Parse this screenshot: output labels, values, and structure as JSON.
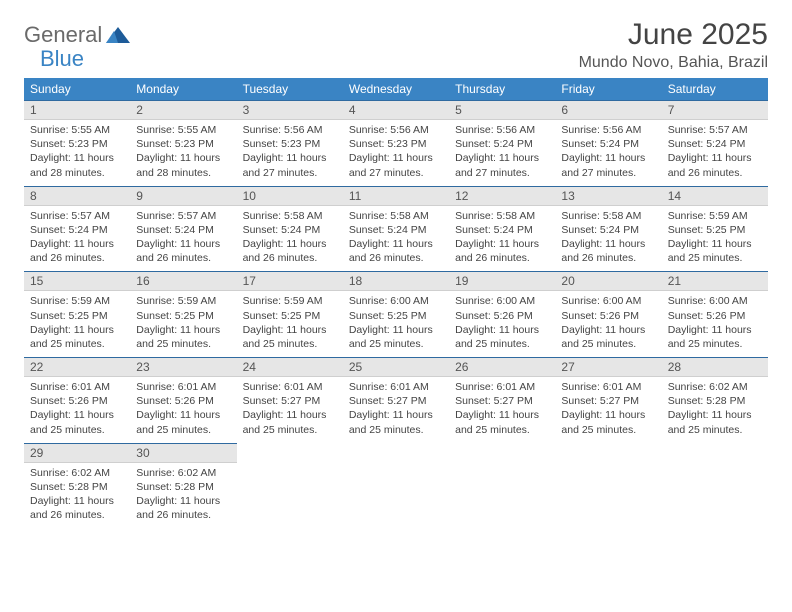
{
  "brand": {
    "text_general": "General",
    "text_blue": "Blue",
    "icon_color": "#1d5b99"
  },
  "title": "June 2025",
  "location": "Mundo Novo, Bahia, Brazil",
  "colors": {
    "header_bg": "#3a84c4",
    "header_text": "#ffffff",
    "daynum_bg": "#e6e6e6",
    "daynum_border_top": "#2f6aa0",
    "body_text": "#444444"
  },
  "day_headers": [
    "Sunday",
    "Monday",
    "Tuesday",
    "Wednesday",
    "Thursday",
    "Friday",
    "Saturday"
  ],
  "weeks": [
    [
      {
        "n": "1",
        "sr": "5:55 AM",
        "ss": "5:23 PM",
        "dl": "11 hours and 28 minutes."
      },
      {
        "n": "2",
        "sr": "5:55 AM",
        "ss": "5:23 PM",
        "dl": "11 hours and 28 minutes."
      },
      {
        "n": "3",
        "sr": "5:56 AM",
        "ss": "5:23 PM",
        "dl": "11 hours and 27 minutes."
      },
      {
        "n": "4",
        "sr": "5:56 AM",
        "ss": "5:23 PM",
        "dl": "11 hours and 27 minutes."
      },
      {
        "n": "5",
        "sr": "5:56 AM",
        "ss": "5:24 PM",
        "dl": "11 hours and 27 minutes."
      },
      {
        "n": "6",
        "sr": "5:56 AM",
        "ss": "5:24 PM",
        "dl": "11 hours and 27 minutes."
      },
      {
        "n": "7",
        "sr": "5:57 AM",
        "ss": "5:24 PM",
        "dl": "11 hours and 26 minutes."
      }
    ],
    [
      {
        "n": "8",
        "sr": "5:57 AM",
        "ss": "5:24 PM",
        "dl": "11 hours and 26 minutes."
      },
      {
        "n": "9",
        "sr": "5:57 AM",
        "ss": "5:24 PM",
        "dl": "11 hours and 26 minutes."
      },
      {
        "n": "10",
        "sr": "5:58 AM",
        "ss": "5:24 PM",
        "dl": "11 hours and 26 minutes."
      },
      {
        "n": "11",
        "sr": "5:58 AM",
        "ss": "5:24 PM",
        "dl": "11 hours and 26 minutes."
      },
      {
        "n": "12",
        "sr": "5:58 AM",
        "ss": "5:24 PM",
        "dl": "11 hours and 26 minutes."
      },
      {
        "n": "13",
        "sr": "5:58 AM",
        "ss": "5:24 PM",
        "dl": "11 hours and 26 minutes."
      },
      {
        "n": "14",
        "sr": "5:59 AM",
        "ss": "5:25 PM",
        "dl": "11 hours and 25 minutes."
      }
    ],
    [
      {
        "n": "15",
        "sr": "5:59 AM",
        "ss": "5:25 PM",
        "dl": "11 hours and 25 minutes."
      },
      {
        "n": "16",
        "sr": "5:59 AM",
        "ss": "5:25 PM",
        "dl": "11 hours and 25 minutes."
      },
      {
        "n": "17",
        "sr": "5:59 AM",
        "ss": "5:25 PM",
        "dl": "11 hours and 25 minutes."
      },
      {
        "n": "18",
        "sr": "6:00 AM",
        "ss": "5:25 PM",
        "dl": "11 hours and 25 minutes."
      },
      {
        "n": "19",
        "sr": "6:00 AM",
        "ss": "5:26 PM",
        "dl": "11 hours and 25 minutes."
      },
      {
        "n": "20",
        "sr": "6:00 AM",
        "ss": "5:26 PM",
        "dl": "11 hours and 25 minutes."
      },
      {
        "n": "21",
        "sr": "6:00 AM",
        "ss": "5:26 PM",
        "dl": "11 hours and 25 minutes."
      }
    ],
    [
      {
        "n": "22",
        "sr": "6:01 AM",
        "ss": "5:26 PM",
        "dl": "11 hours and 25 minutes."
      },
      {
        "n": "23",
        "sr": "6:01 AM",
        "ss": "5:26 PM",
        "dl": "11 hours and 25 minutes."
      },
      {
        "n": "24",
        "sr": "6:01 AM",
        "ss": "5:27 PM",
        "dl": "11 hours and 25 minutes."
      },
      {
        "n": "25",
        "sr": "6:01 AM",
        "ss": "5:27 PM",
        "dl": "11 hours and 25 minutes."
      },
      {
        "n": "26",
        "sr": "6:01 AM",
        "ss": "5:27 PM",
        "dl": "11 hours and 25 minutes."
      },
      {
        "n": "27",
        "sr": "6:01 AM",
        "ss": "5:27 PM",
        "dl": "11 hours and 25 minutes."
      },
      {
        "n": "28",
        "sr": "6:02 AM",
        "ss": "5:28 PM",
        "dl": "11 hours and 25 minutes."
      }
    ],
    [
      {
        "n": "29",
        "sr": "6:02 AM",
        "ss": "5:28 PM",
        "dl": "11 hours and 26 minutes."
      },
      {
        "n": "30",
        "sr": "6:02 AM",
        "ss": "5:28 PM",
        "dl": "11 hours and 26 minutes."
      },
      null,
      null,
      null,
      null,
      null
    ]
  ],
  "labels": {
    "sunrise": "Sunrise:",
    "sunset": "Sunset:",
    "daylight": "Daylight:"
  }
}
